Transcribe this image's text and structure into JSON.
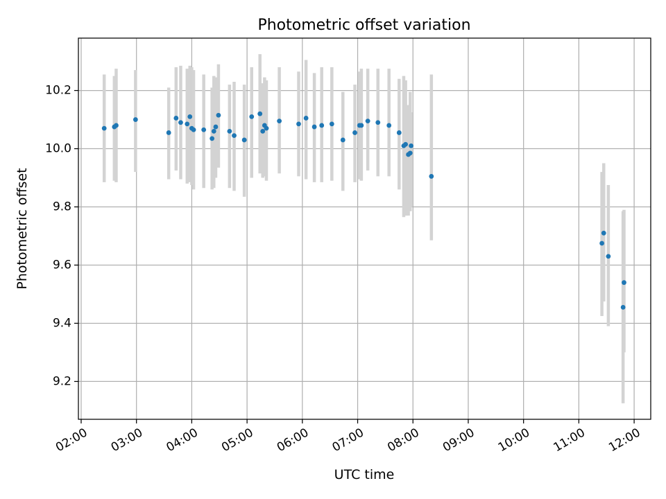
{
  "chart_data": {
    "type": "scatter",
    "title": "Photometric offset variation",
    "xlabel": "UTC time",
    "ylabel": "Photometric offset",
    "x_ticks": [
      "02:00",
      "03:00",
      "04:00",
      "05:00",
      "06:00",
      "07:00",
      "08:00",
      "09:00",
      "10:00",
      "11:00",
      "12:00"
    ],
    "y_ticks": [
      "9.2",
      "9.4",
      "9.6",
      "9.8",
      "10.0",
      "10.2"
    ],
    "xlim": [
      "01:57",
      "12:18"
    ],
    "ylim": [
      9.07,
      10.38
    ],
    "grid": true,
    "colors": {
      "point": "#1f77b4",
      "errorbar": "#d3d3d3",
      "grid": "#b0b0b0"
    },
    "series": [
      {
        "x": [
          "02:25",
          "02:36",
          "02:38",
          "02:59",
          "03:35",
          "03:43",
          "03:48",
          "03:55",
          "03:58",
          "04:00",
          "04:02",
          "04:13",
          "04:22",
          "04:24",
          "04:26",
          "04:29",
          "04:41",
          "04:46",
          "04:57",
          "05:05",
          "05:14",
          "05:17",
          "05:19",
          "05:21",
          "05:35",
          "05:56",
          "06:04",
          "06:13",
          "06:21",
          "06:32",
          "06:44",
          "06:57",
          "07:02",
          "07:04",
          "07:11",
          "07:22",
          "07:34",
          "07:45",
          "07:50",
          "07:52",
          "07:55",
          "07:57",
          "07:58",
          "08:20",
          "11:25",
          "11:27",
          "11:32",
          "11:48",
          "11:49"
        ],
        "y": [
          10.07,
          10.075,
          10.08,
          10.1,
          10.055,
          10.105,
          10.09,
          10.085,
          10.11,
          10.07,
          10.065,
          10.065,
          10.035,
          10.06,
          10.075,
          10.115,
          10.06,
          10.045,
          10.03,
          10.11,
          10.12,
          10.06,
          10.08,
          10.07,
          10.095,
          10.085,
          10.105,
          10.075,
          10.08,
          10.085,
          10.03,
          10.055,
          10.08,
          10.08,
          10.095,
          10.09,
          10.08,
          10.055,
          10.01,
          10.015,
          9.98,
          9.985,
          10.01,
          9.905,
          9.675,
          9.71,
          9.63,
          9.455,
          9.54
        ],
        "err_low": [
          9.885,
          9.89,
          9.885,
          9.92,
          9.895,
          9.925,
          9.895,
          9.88,
          9.885,
          9.875,
          9.86,
          9.865,
          9.86,
          9.865,
          9.9,
          9.935,
          9.865,
          9.855,
          9.835,
          9.9,
          9.915,
          9.9,
          9.905,
          9.89,
          9.915,
          9.905,
          9.895,
          9.885,
          9.885,
          9.89,
          9.855,
          9.885,
          9.895,
          9.89,
          9.925,
          9.905,
          9.905,
          9.86,
          9.765,
          9.77,
          9.77,
          9.785,
          9.8,
          9.685,
          9.425,
          9.475,
          9.39,
          9.125,
          9.3
        ],
        "err_high": [
          10.255,
          10.25,
          10.275,
          10.27,
          10.21,
          10.28,
          10.285,
          10.275,
          10.285,
          10.28,
          10.27,
          10.255,
          10.21,
          10.25,
          10.245,
          10.29,
          10.22,
          10.23,
          10.22,
          10.28,
          10.325,
          10.225,
          10.245,
          10.235,
          10.28,
          10.265,
          10.305,
          10.26,
          10.28,
          10.28,
          10.195,
          10.22,
          10.265,
          10.275,
          10.275,
          10.275,
          10.275,
          10.24,
          10.25,
          10.235,
          10.15,
          10.195,
          10.125,
          10.255,
          9.92,
          9.95,
          9.875,
          9.785,
          9.79
        ]
      }
    ]
  }
}
